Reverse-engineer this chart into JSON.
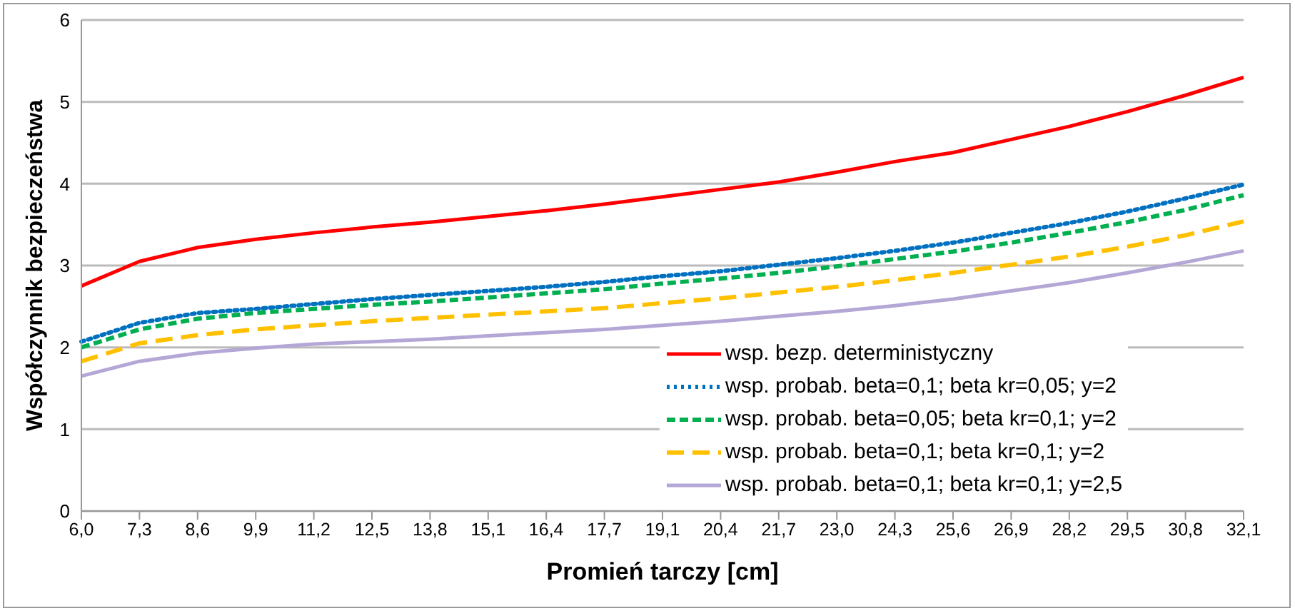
{
  "chart_data": {
    "type": "line",
    "xlabel": "Promień tarczy [cm]",
    "ylabel": "Współczynnik bezpieczeństwa",
    "categories": [
      "6,0",
      "7,3",
      "8,6",
      "9,9",
      "11,2",
      "12,5",
      "13,8",
      "15,1",
      "16,4",
      "17,7",
      "19,1",
      "20,4",
      "21,7",
      "23,0",
      "24,3",
      "25,6",
      "26,9",
      "28,2",
      "29,5",
      "30,8",
      "32,1"
    ],
    "ylim": [
      0,
      6
    ],
    "yticks": [
      0,
      1,
      2,
      3,
      4,
      5,
      6
    ],
    "grid": "y",
    "legend": "bottom right",
    "marker": "none",
    "series": [
      {
        "name": "wsp. bezp. deterministyczny",
        "color": "#ff0000",
        "line_style": "solid",
        "values": [
          2.75,
          3.05,
          3.22,
          3.32,
          3.4,
          3.47,
          3.53,
          3.6,
          3.67,
          3.75,
          3.84,
          3.93,
          4.02,
          4.14,
          4.27,
          4.38,
          4.54,
          4.7,
          4.88,
          5.08,
          5.3
        ]
      },
      {
        "name": "wsp. probab. beta=0,1; beta kr=0,05; y=2",
        "color": "#0070c0",
        "line_style": "dotted",
        "values": [
          2.07,
          2.3,
          2.42,
          2.47,
          2.53,
          2.59,
          2.64,
          2.69,
          2.74,
          2.8,
          2.87,
          2.93,
          3.01,
          3.09,
          3.18,
          3.28,
          3.4,
          3.52,
          3.66,
          3.82,
          3.99
        ]
      },
      {
        "name": "wsp. probab. beta=0,05; beta kr=0,1; y=2",
        "color": "#00b050",
        "line_style": "dashed",
        "values": [
          2.0,
          2.22,
          2.35,
          2.42,
          2.47,
          2.52,
          2.56,
          2.61,
          2.66,
          2.71,
          2.78,
          2.84,
          2.91,
          2.99,
          3.08,
          3.17,
          3.28,
          3.4,
          3.53,
          3.68,
          3.86
        ]
      },
      {
        "name": "wsp. probab. beta=0,1; beta kr=0,1; y=2",
        "color": "#ffc000",
        "line_style": "longdash",
        "values": [
          1.83,
          2.05,
          2.15,
          2.22,
          2.27,
          2.32,
          2.36,
          2.4,
          2.44,
          2.48,
          2.54,
          2.6,
          2.67,
          2.74,
          2.82,
          2.91,
          3.01,
          3.11,
          3.23,
          3.37,
          3.54
        ]
      },
      {
        "name": "wsp. probab. beta=0,1; beta kr=0,1; y=2,5",
        "color": "#b4a7d6",
        "line_style": "solid",
        "values": [
          1.65,
          1.83,
          1.93,
          1.99,
          2.04,
          2.07,
          2.1,
          2.14,
          2.18,
          2.22,
          2.27,
          2.32,
          2.38,
          2.44,
          2.51,
          2.59,
          2.69,
          2.79,
          2.91,
          3.04,
          3.18
        ]
      }
    ]
  }
}
